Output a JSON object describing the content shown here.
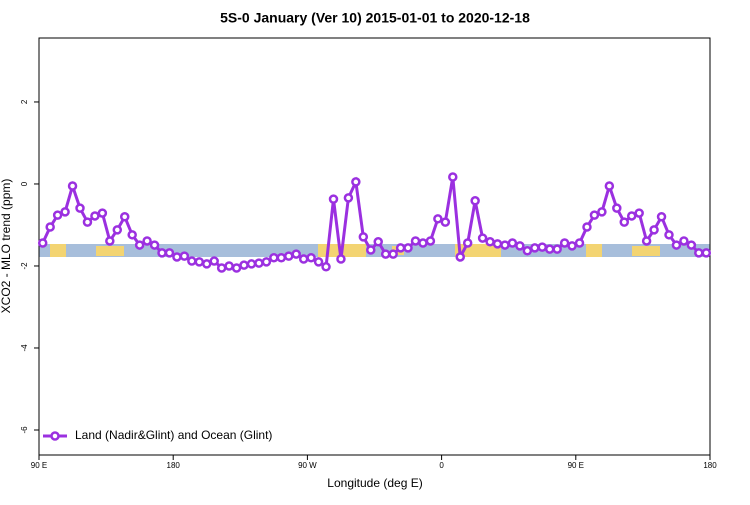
{
  "chart_data": {
    "type": "line",
    "title": "5S-0 January (Ver 10)   2015-01-01 to 2020-12-18",
    "x_label": "Longitude (deg E)",
    "y_label": "XCO2 - MLO trend (ppm)",
    "x": [
      92.5,
      97.5,
      102.5,
      107.5,
      112.5,
      117.5,
      122.5,
      127.5,
      132.5,
      137.5,
      142.5,
      147.5,
      152.5,
      157.5,
      162.5,
      167.5,
      172.5,
      177.5,
      182.5,
      187.5,
      192.5,
      197.5,
      202.5,
      207.5,
      212.5,
      217.5,
      222.5,
      227.5,
      232.5,
      237.5,
      242.5,
      247.5,
      252.5,
      257.5,
      262.5,
      267.5,
      272.5,
      277.5,
      282.5,
      287.5,
      292.5,
      297.5,
      302.5,
      307.5,
      312.5,
      317.5,
      322.5,
      327.5,
      332.5,
      337.5,
      342.5,
      347.5,
      352.5,
      357.5,
      362.5,
      367.5,
      372.5,
      377.5,
      382.5,
      387.5,
      392.5,
      397.5,
      402.5,
      407.5,
      412.5,
      417.5,
      422.5,
      427.5,
      432.5,
      437.5,
      442.5,
      447.5,
      452.5,
      457.5,
      462.5,
      467.5,
      472.5,
      477.5,
      482.5,
      487.5,
      492.5,
      497.5,
      502.5,
      507.5,
      512.5,
      517.5,
      522.5,
      527.5,
      532.5,
      537.5
    ],
    "series": [
      {
        "name": "Land (Nadir&Glint) and Ocean (Glint)",
        "color": "#9b30e0",
        "values": [
          -1.44,
          -1.05,
          -0.76,
          -0.68,
          -0.05,
          -0.59,
          -0.93,
          -0.78,
          -0.71,
          -1.39,
          -1.12,
          -0.8,
          -1.24,
          -1.49,
          -1.39,
          -1.49,
          -1.68,
          -1.68,
          -1.78,
          -1.76,
          -1.88,
          -1.9,
          -1.95,
          -1.88,
          -2.05,
          -2.0,
          -2.05,
          -1.98,
          -1.95,
          -1.93,
          -1.9,
          -1.8,
          -1.8,
          -1.76,
          -1.71,
          -1.83,
          -1.8,
          -1.9,
          -2.02,
          -0.37,
          -1.83,
          -0.34,
          0.05,
          -1.29,
          -1.61,
          -1.41,
          -1.71,
          -1.71,
          -1.56,
          -1.56,
          -1.39,
          -1.44,
          -1.39,
          -0.85,
          -0.93,
          0.17,
          -1.78,
          -1.44,
          -0.41,
          -1.32,
          -1.41,
          -1.46,
          -1.49,
          -1.44,
          -1.51,
          -1.63,
          -1.56,
          -1.54,
          -1.59,
          -1.59,
          -1.44,
          -1.51,
          -1.44,
          -1.05,
          -0.76,
          -0.68,
          -0.05,
          -0.59,
          -0.93,
          -0.78,
          -0.71,
          -1.39,
          -1.12,
          -0.8,
          -1.24,
          -1.49,
          -1.39,
          -1.49,
          -1.68,
          -1.68
        ]
      }
    ],
    "xlim": [
      90,
      540
    ],
    "xticks": [
      {
        "value": 90,
        "label": "90 E"
      },
      {
        "value": 180,
        "label": "180"
      },
      {
        "value": 270,
        "label": "90 W"
      },
      {
        "value": 360,
        "label": "0"
      },
      {
        "value": 450,
        "label": "90 E"
      },
      {
        "value": 540,
        "label": "180"
      }
    ],
    "ylim": [
      -6.61,
      3.56
    ],
    "yticks": [
      2,
      0,
      -2,
      -4,
      -6
    ],
    "legend": "bottom-left"
  }
}
